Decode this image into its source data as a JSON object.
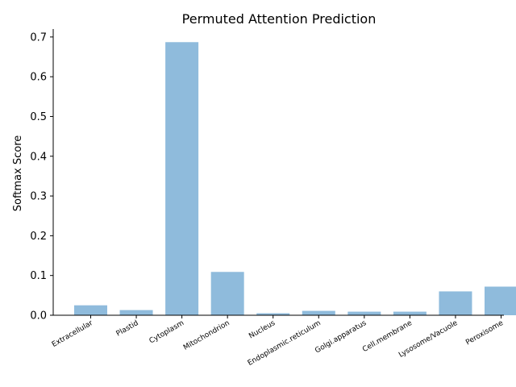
{
  "chart_data": {
    "type": "bar",
    "title": "Permuted Attention Prediction",
    "xlabel": "",
    "ylabel": "Softmax Score",
    "categories": [
      "Extracellular",
      "Plastid",
      "Cytoplasm",
      "Mitochondrion",
      "Nucleus",
      "Endoplasmic.reticulum",
      "Golgi.apparatus",
      "Cell.membrane",
      "Lysosome/Vacuole",
      "Peroxisome"
    ],
    "values": [
      0.025,
      0.013,
      0.687,
      0.109,
      0.005,
      0.011,
      0.009,
      0.009,
      0.06,
      0.072
    ],
    "ylim": [
      0,
      0.72
    ],
    "yticks": [
      "0.0",
      "0.1",
      "0.2",
      "0.3",
      "0.4",
      "0.5",
      "0.6",
      "0.7"
    ],
    "grid": false,
    "bar_color": "#8fbbdc"
  }
}
